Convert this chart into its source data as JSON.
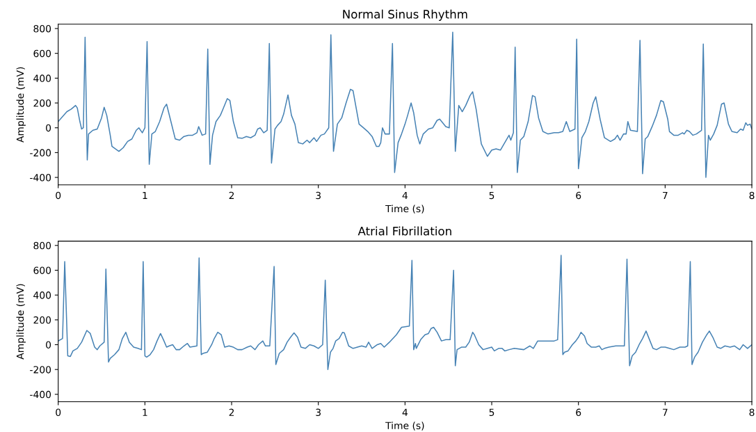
{
  "chart_data": [
    {
      "type": "line",
      "title": "Normal Sinus Rhythm",
      "xlabel": "Time (s)",
      "ylabel": "Amplitude (mV)",
      "xlim": [
        0,
        8
      ],
      "ylim": [
        -460,
        835
      ],
      "xticks": [
        0,
        1,
        2,
        3,
        4,
        5,
        6,
        7,
        8
      ],
      "yticks": [
        -400,
        -200,
        0,
        200,
        400,
        600,
        800
      ],
      "grid": false,
      "legend": false,
      "line_style": "solid",
      "marker": "none",
      "series": [
        {
          "color": "#4682b4",
          "x": [
            0,
            0.1,
            0.15,
            0.2,
            0.22,
            0.25,
            0.27,
            0.29,
            0.31,
            0.335,
            0.35,
            0.4,
            0.45,
            0.5,
            0.53,
            0.56,
            0.6,
            0.62,
            0.7,
            0.75,
            0.8,
            0.85,
            0.9,
            0.93,
            0.97,
            1.0,
            1.025,
            1.05,
            1.08,
            1.12,
            1.17,
            1.22,
            1.25,
            1.3,
            1.35,
            1.4,
            1.45,
            1.5,
            1.55,
            1.6,
            1.62,
            1.66,
            1.7,
            1.725,
            1.75,
            1.78,
            1.82,
            1.87,
            1.9,
            1.95,
            1.98,
            2.02,
            2.07,
            2.12,
            2.17,
            2.22,
            2.27,
            2.3,
            2.33,
            2.37,
            2.41,
            2.435,
            2.46,
            2.5,
            2.53,
            2.57,
            2.6,
            2.65,
            2.69,
            2.73,
            2.77,
            2.82,
            2.87,
            2.9,
            2.95,
            2.98,
            3.03,
            3.07,
            3.12,
            3.145,
            3.175,
            3.22,
            3.27,
            3.32,
            3.37,
            3.4,
            3.47,
            3.52,
            3.57,
            3.62,
            3.67,
            3.7,
            3.72,
            3.74,
            3.77,
            3.82,
            3.855,
            3.88,
            3.92,
            3.96,
            4.0,
            4.03,
            4.07,
            4.1,
            4.14,
            4.17,
            4.21,
            4.27,
            4.32,
            4.37,
            4.4,
            4.47,
            4.51,
            4.55,
            4.58,
            4.62,
            4.66,
            4.7,
            4.75,
            4.78,
            4.82,
            4.88,
            4.95,
            5.0,
            5.05,
            5.1,
            5.15,
            5.2,
            5.22,
            5.25,
            5.27,
            5.295,
            5.33,
            5.37,
            5.42,
            5.47,
            5.5,
            5.54,
            5.59,
            5.65,
            5.72,
            5.77,
            5.82,
            5.86,
            5.9,
            5.96,
            5.98,
            6.0,
            6.04,
            6.08,
            6.12,
            6.17,
            6.2,
            6.25,
            6.3,
            6.37,
            6.42,
            6.45,
            6.48,
            6.52,
            6.55,
            6.57,
            6.6,
            6.68,
            6.71,
            6.74,
            6.77,
            6.8,
            6.85,
            6.9,
            6.95,
            6.98,
            7.03,
            7.05,
            7.1,
            7.15,
            7.2,
            7.22,
            7.25,
            7.28,
            7.32,
            7.36,
            7.42,
            7.44,
            7.47,
            7.5,
            7.52,
            7.56,
            7.6,
            7.65,
            7.68,
            7.73,
            7.77,
            7.83,
            7.87,
            7.9,
            7.93,
            7.95,
            7.98,
            8.0
          ],
          "values": [
            50,
            130,
            150,
            180,
            160,
            50,
            -10,
            0,
            730,
            -260,
            -50,
            -20,
            -10,
            80,
            165,
            100,
            -60,
            -150,
            -190,
            -160,
            -110,
            -90,
            -20,
            0,
            -40,
            0,
            695,
            -295,
            -50,
            -30,
            50,
            160,
            190,
            50,
            -90,
            -100,
            -70,
            -60,
            -60,
            -40,
            10,
            -60,
            -50,
            635,
            -295,
            -60,
            50,
            100,
            150,
            235,
            220,
            50,
            -80,
            -85,
            -70,
            -80,
            -60,
            -10,
            0,
            -40,
            -20,
            680,
            -285,
            -10,
            20,
            50,
            110,
            265,
            100,
            30,
            -120,
            -130,
            -100,
            -120,
            -80,
            -110,
            -60,
            -50,
            0,
            750,
            -190,
            30,
            80,
            200,
            310,
            300,
            30,
            0,
            -30,
            -70,
            -150,
            -150,
            -120,
            0,
            -50,
            -50,
            680,
            -360,
            -120,
            -50,
            30,
            100,
            200,
            120,
            -60,
            -130,
            -50,
            -10,
            0,
            60,
            70,
            10,
            0,
            770,
            -190,
            180,
            130,
            180,
            260,
            290,
            150,
            -130,
            -230,
            -180,
            -170,
            -180,
            -120,
            -60,
            -100,
            -40,
            650,
            -360,
            -100,
            -70,
            50,
            260,
            250,
            80,
            -30,
            -50,
            -40,
            -40,
            -30,
            50,
            -30,
            -10,
            715,
            -330,
            -80,
            -30,
            50,
            200,
            250,
            70,
            -80,
            -110,
            -90,
            -60,
            -100,
            -50,
            -50,
            50,
            -20,
            -30,
            705,
            -370,
            -90,
            -70,
            10,
            100,
            220,
            210,
            70,
            -30,
            -60,
            -60,
            -40,
            -50,
            -20,
            -30,
            -60,
            -50,
            -20,
            675,
            -400,
            -60,
            -100,
            -50,
            20,
            190,
            200,
            30,
            -30,
            -40,
            -10,
            -20,
            40,
            20,
            30,
            -10
          ]
        }
      ]
    },
    {
      "type": "line",
      "title": "Atrial Fibrillation",
      "xlabel": "Time (s)",
      "ylabel": "Amplitude (mV)",
      "xlim": [
        0,
        8
      ],
      "ylim": [
        -460,
        835
      ],
      "xticks": [
        0,
        1,
        2,
        3,
        4,
        5,
        6,
        7,
        8
      ],
      "yticks": [
        -400,
        -200,
        0,
        200,
        400,
        600,
        800
      ],
      "grid": false,
      "legend": false,
      "line_style": "solid",
      "marker": "none",
      "series": [
        {
          "color": "#4682b4",
          "x": [
            0,
            0.05,
            0.075,
            0.11,
            0.14,
            0.17,
            0.22,
            0.27,
            0.33,
            0.37,
            0.42,
            0.45,
            0.48,
            0.53,
            0.55,
            0.58,
            0.6,
            0.65,
            0.7,
            0.74,
            0.78,
            0.82,
            0.87,
            0.92,
            0.96,
            0.98,
            1.0,
            1.02,
            1.06,
            1.1,
            1.14,
            1.18,
            1.22,
            1.25,
            1.28,
            1.32,
            1.36,
            1.4,
            1.45,
            1.49,
            1.52,
            1.6,
            1.625,
            1.65,
            1.67,
            1.72,
            1.77,
            1.8,
            1.84,
            1.88,
            1.92,
            1.97,
            2.02,
            2.07,
            2.12,
            2.18,
            2.22,
            2.27,
            2.31,
            2.36,
            2.39,
            2.44,
            2.49,
            2.51,
            2.55,
            2.6,
            2.64,
            2.68,
            2.72,
            2.76,
            2.8,
            2.85,
            2.9,
            2.95,
            3.0,
            3.05,
            3.08,
            3.11,
            3.14,
            3.17,
            3.2,
            3.24,
            3.28,
            3.3,
            3.35,
            3.4,
            3.45,
            3.5,
            3.55,
            3.58,
            3.62,
            3.68,
            3.72,
            3.76,
            3.82,
            3.9,
            3.96,
            4.05,
            4.08,
            4.1,
            4.12,
            4.13,
            4.18,
            4.23,
            4.27,
            4.3,
            4.33,
            4.37,
            4.42,
            4.47,
            4.52,
            4.56,
            4.58,
            4.6,
            4.65,
            4.7,
            4.74,
            4.78,
            4.8,
            4.85,
            4.9,
            4.95,
            5.0,
            5.03,
            5.08,
            5.12,
            5.15,
            5.2,
            5.26,
            5.37,
            5.44,
            5.48,
            5.53,
            5.72,
            5.76,
            5.8,
            5.82,
            5.84,
            5.88,
            5.93,
            5.97,
            6.0,
            6.03,
            6.07,
            6.1,
            6.15,
            6.2,
            6.24,
            6.27,
            6.3,
            6.35,
            6.43,
            6.53,
            6.56,
            6.59,
            6.62,
            6.66,
            6.7,
            6.74,
            6.78,
            6.82,
            6.86,
            6.9,
            6.95,
            7.0,
            7.05,
            7.1,
            7.17,
            7.23,
            7.26,
            7.29,
            7.31,
            7.34,
            7.38,
            7.43,
            7.48,
            7.51,
            7.55,
            7.6,
            7.64,
            7.69,
            7.75,
            7.8,
            7.86,
            7.9,
            7.95,
            8.0
          ],
          "values": [
            30,
            50,
            670,
            -90,
            -95,
            -50,
            -30,
            20,
            115,
            90,
            -20,
            -40,
            -10,
            20,
            610,
            -140,
            -110,
            -80,
            -40,
            50,
            100,
            20,
            -20,
            -30,
            -40,
            670,
            -90,
            -100,
            -80,
            -40,
            30,
            90,
            30,
            -20,
            -10,
            0,
            -40,
            -40,
            -10,
            10,
            -20,
            -10,
            700,
            -80,
            -70,
            -60,
            0,
            50,
            100,
            80,
            -20,
            -10,
            -20,
            -40,
            -40,
            -20,
            -10,
            -40,
            0,
            30,
            -10,
            -10,
            630,
            -160,
            -70,
            -40,
            20,
            60,
            95,
            60,
            -20,
            -30,
            0,
            -10,
            -30,
            0,
            520,
            -200,
            -60,
            -30,
            30,
            50,
            100,
            95,
            -10,
            -30,
            -20,
            -10,
            -20,
            20,
            -30,
            0,
            10,
            -20,
            20,
            80,
            140,
            150,
            680,
            -40,
            10,
            -30,
            40,
            80,
            90,
            130,
            140,
            100,
            30,
            40,
            40,
            600,
            -170,
            -40,
            -20,
            -20,
            20,
            100,
            80,
            0,
            -40,
            -30,
            -20,
            -50,
            -30,
            -30,
            -50,
            -40,
            -30,
            -40,
            -10,
            -30,
            30,
            30,
            40,
            720,
            -80,
            -60,
            -50,
            0,
            30,
            60,
            100,
            70,
            10,
            -20,
            -20,
            -10,
            -40,
            -30,
            -20,
            -10,
            -10,
            690,
            -170,
            -90,
            -60,
            0,
            50,
            110,
            40,
            -30,
            -40,
            -20,
            -20,
            -30,
            -40,
            -20,
            -20,
            -10,
            670,
            -160,
            -100,
            -60,
            20,
            80,
            110,
            60,
            -20,
            -30,
            -10,
            -20,
            -10,
            -40,
            0,
            -30,
            0
          ]
        }
      ]
    }
  ]
}
